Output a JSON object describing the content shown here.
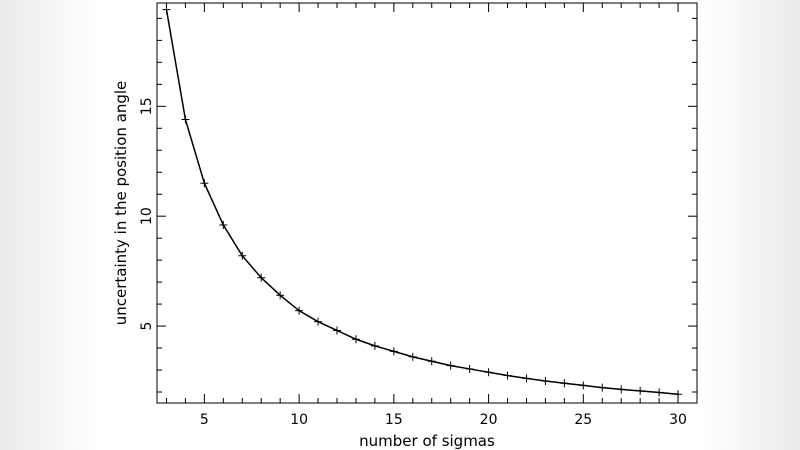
{
  "chart_data": {
    "type": "line",
    "title": "",
    "xlabel": "number of sigmas",
    "ylabel": "uncertainty in the position angle",
    "xlim": [
      2.5,
      31.0
    ],
    "ylim": [
      1.5,
      19.7
    ],
    "x_ticks": [
      "5",
      "10",
      "15",
      "20",
      "25",
      "30"
    ],
    "y_ticks": [
      "5",
      "10",
      "15"
    ],
    "grid": false,
    "legend": "none",
    "line_color": "#000000",
    "marker": "plus",
    "series": [
      {
        "x": [
          3,
          4,
          5,
          6,
          7,
          8,
          9,
          10,
          11,
          12,
          13,
          14,
          15,
          16,
          17,
          18,
          19,
          20,
          21,
          22,
          23,
          24,
          25,
          26,
          27,
          28,
          29,
          30
        ],
        "values": [
          19.4,
          14.4,
          11.5,
          9.6,
          8.2,
          7.2,
          6.4,
          5.7,
          5.2,
          4.8,
          4.4,
          4.1,
          3.85,
          3.6,
          3.4,
          3.2,
          3.05,
          2.9,
          2.75,
          2.62,
          2.5,
          2.4,
          2.3,
          2.2,
          2.12,
          2.05,
          1.98,
          1.9
        ]
      }
    ]
  }
}
